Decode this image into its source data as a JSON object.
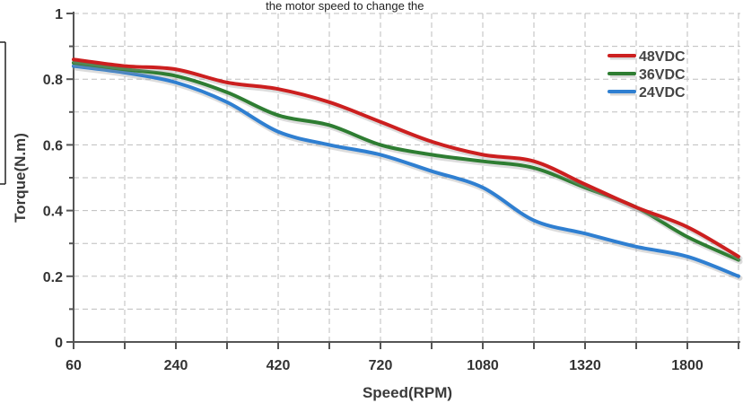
{
  "top_note": "                                                                                  the motor speed to change the ",
  "chart_data": {
    "type": "line",
    "title": "",
    "xlabel": "Speed(RPM)",
    "ylabel": "Torque(N.m)",
    "x_tick_labels": [
      "60",
      "240",
      "420",
      "720",
      "1080",
      "1320",
      "1800"
    ],
    "y_tick_labels": [
      "0",
      "0.2",
      "0.4",
      "0.6",
      "0.8",
      "1"
    ],
    "ylim": [
      0,
      1
    ],
    "grid": true,
    "legend_position": "top-right",
    "x_positions_note": "series x values are given as tick-slot index (0 = 60 RPM ... 13 = 2020 RPM approx.)",
    "series": [
      {
        "name": "48VDC",
        "color": "#cc1f1f",
        "x": [
          0,
          1,
          2,
          3,
          4,
          5,
          6,
          7,
          8,
          9,
          10,
          11,
          12,
          13
        ],
        "y": [
          0.86,
          0.84,
          0.83,
          0.79,
          0.77,
          0.73,
          0.67,
          0.61,
          0.57,
          0.55,
          0.48,
          0.41,
          0.35,
          0.26
        ]
      },
      {
        "name": "36VDC",
        "color": "#2e7d32",
        "x": [
          0,
          1,
          2,
          3,
          4,
          5,
          6,
          7,
          8,
          9,
          10,
          11,
          12,
          13
        ],
        "y": [
          0.85,
          0.83,
          0.81,
          0.76,
          0.69,
          0.66,
          0.6,
          0.57,
          0.55,
          0.53,
          0.47,
          0.41,
          0.32,
          0.25
        ]
      },
      {
        "name": "24VDC",
        "color": "#2f7fd1",
        "x": [
          0,
          1,
          2,
          3,
          4,
          5,
          6,
          7,
          8,
          9,
          10,
          11,
          12,
          13
        ],
        "y": [
          0.84,
          0.82,
          0.79,
          0.73,
          0.64,
          0.6,
          0.57,
          0.52,
          0.47,
          0.37,
          0.33,
          0.29,
          0.26,
          0.2
        ]
      }
    ]
  }
}
